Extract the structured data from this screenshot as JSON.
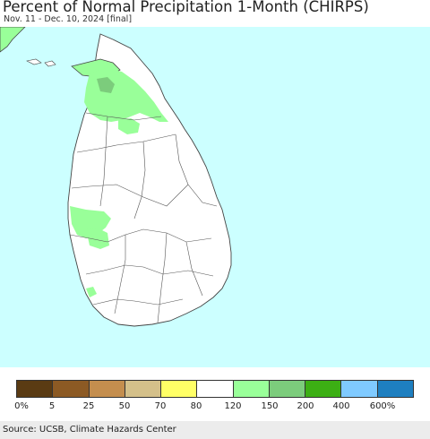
{
  "header": {
    "title": "Percent of Normal Precipitation 1-Month (CHIRPS)",
    "subtitle": "Nov. 11 - Dec. 10, 2024 [final]"
  },
  "map": {
    "ocean_color": "#ccffff",
    "land_color": "#ffffff",
    "border_color": "#444444"
  },
  "legend": {
    "bins": [
      {
        "color": "#5a3b13"
      },
      {
        "color": "#8c5a24"
      },
      {
        "color": "#c48e4e"
      },
      {
        "color": "#d4c08a"
      },
      {
        "color": "#ffff66"
      },
      {
        "color": "#ffffff"
      },
      {
        "color": "#99ff99"
      },
      {
        "color": "#7ccc7c"
      },
      {
        "color": "#3caf14"
      },
      {
        "color": "#7fcaff"
      },
      {
        "color": "#1e7fc0"
      }
    ],
    "labels": [
      "0%",
      "5",
      "25",
      "50",
      "70",
      "80",
      "120",
      "150",
      "200",
      "400",
      "600%"
    ]
  },
  "footer": {
    "source": "Source: UCSB, Climate Hazards Center"
  }
}
